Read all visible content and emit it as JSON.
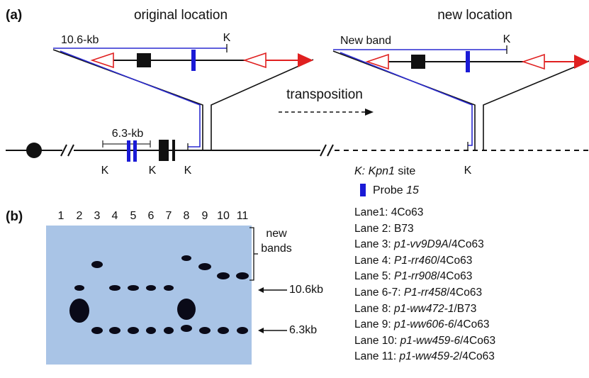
{
  "panel_a": {
    "label": "(a)",
    "original_title": "original location",
    "new_title": "new location",
    "original_band": "10.6-kb",
    "new_band": "New band",
    "arrow_label": "transposition",
    "short_band": "6.3-kb",
    "k_sites": [
      "K",
      "K",
      "K",
      "K",
      "K",
      "K"
    ],
    "legend": {
      "k_symbol": "K:",
      "k_enzyme": "Kpn1",
      "k_suffix": " site",
      "probe_prefix": "Probe ",
      "probe_name": "15"
    }
  },
  "panel_b": {
    "label": "(b)",
    "lanes": [
      "1",
      "2",
      "3",
      "4",
      "5",
      "6",
      "7",
      "8",
      "9",
      "10",
      "11"
    ],
    "markers": {
      "new_bands": [
        "new",
        "bands"
      ],
      "large": "10.6kb",
      "small": "6.3kb"
    },
    "lane_legend": [
      {
        "prefix": "Lane1: ",
        "suffix": "4Co63"
      },
      {
        "prefix": "Lane 2: ",
        "suffix": "B73"
      },
      {
        "prefix": "Lane 3: ",
        "allele": "p1-vv9D9A",
        "suffix": "/4Co63"
      },
      {
        "prefix": "Lane 4: ",
        "allele": "P1-rr460",
        "suffix": "/4Co63"
      },
      {
        "prefix": "Lane 5: ",
        "allele": "P1-rr908",
        "suffix": "/4Co63"
      },
      {
        "prefix": "Lane 6-7: ",
        "allele": "P1-rr458",
        "suffix": "/4Co63"
      },
      {
        "prefix": "Lane 8: ",
        "allele": "p1-ww472-1",
        "suffix": "/B73"
      },
      {
        "prefix": "Lane 9: ",
        "allele": "p1-ww606-6",
        "suffix": "/4Co63"
      },
      {
        "prefix": "Lane 10: ",
        "allele": "p1-ww459-6",
        "suffix": "/4Co63"
      },
      {
        "prefix": "Lane 11: ",
        "allele": "p1-ww459-2",
        "suffix": "/4Co63"
      }
    ]
  }
}
